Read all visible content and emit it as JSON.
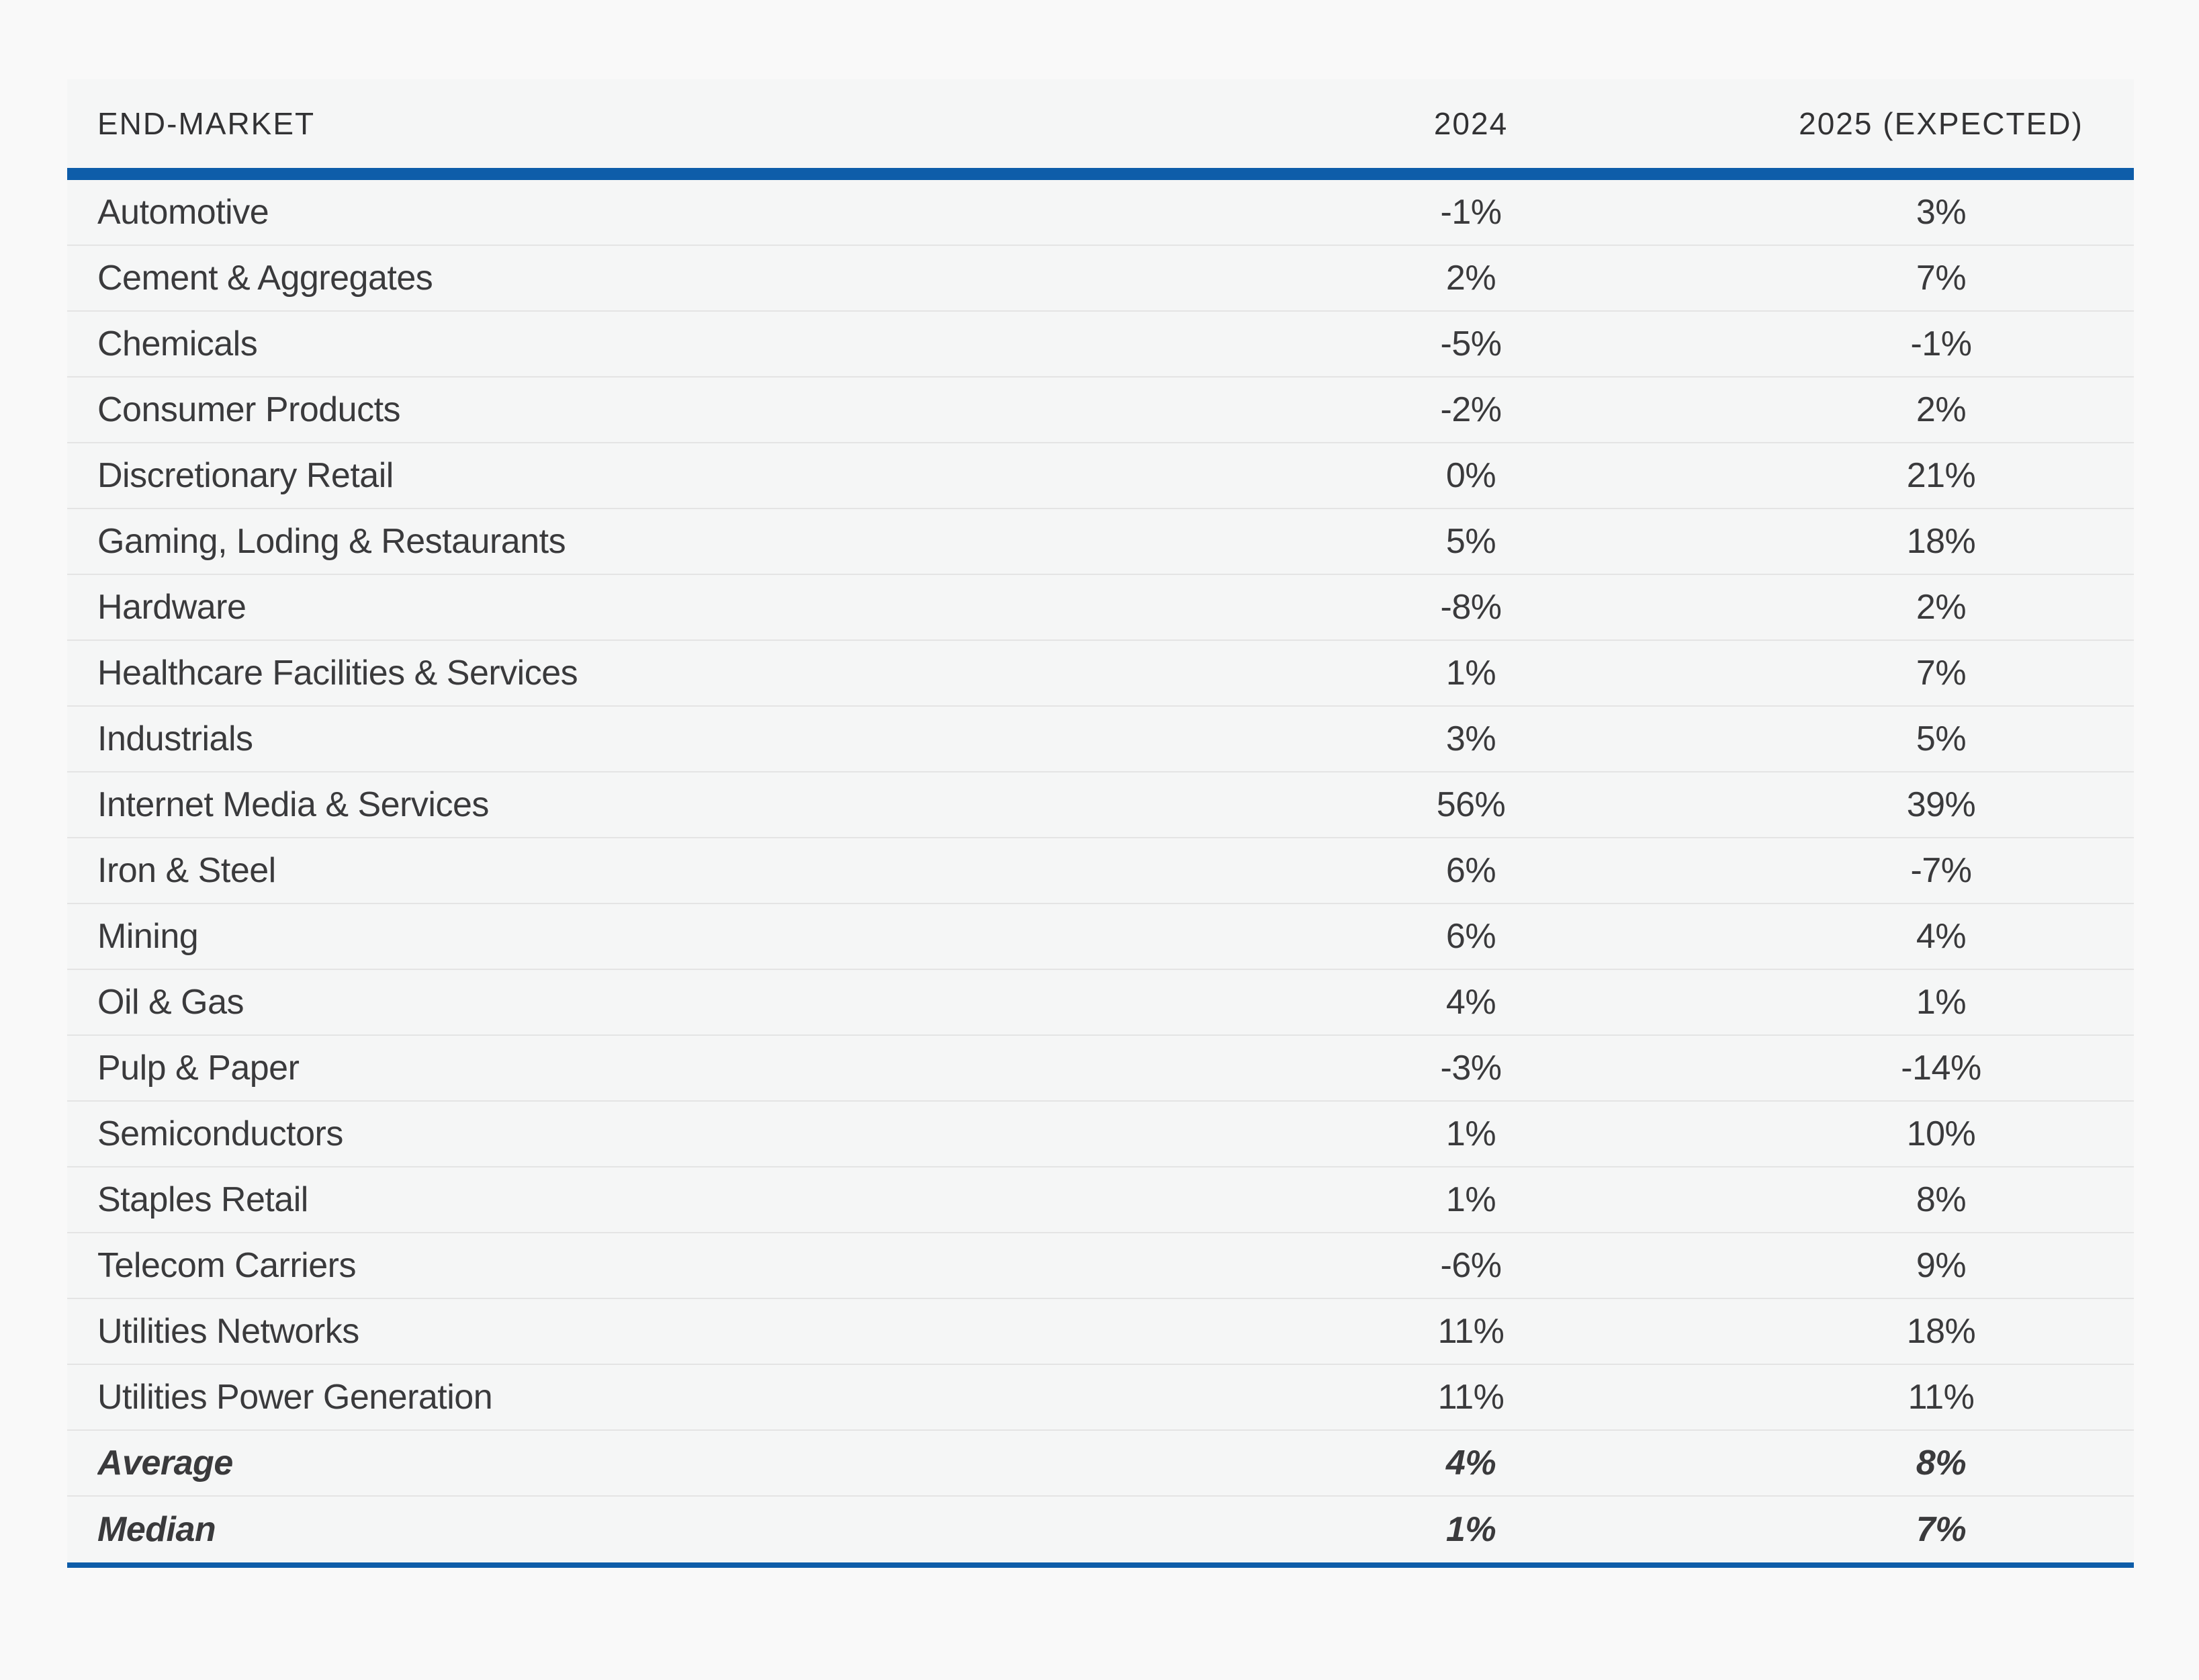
{
  "accent_color": "#0e5da9",
  "table": {
    "columns": [
      "END-MARKET",
      "2024",
      "2025 (EXPECTED)"
    ],
    "rows": [
      {
        "label": "Automotive",
        "v2024": "-1%",
        "v2025": "3%",
        "emphasis": false
      },
      {
        "label": "Cement & Aggregates",
        "v2024": "2%",
        "v2025": "7%",
        "emphasis": false
      },
      {
        "label": "Chemicals",
        "v2024": "-5%",
        "v2025": "-1%",
        "emphasis": false
      },
      {
        "label": "Consumer Products",
        "v2024": "-2%",
        "v2025": "2%",
        "emphasis": false
      },
      {
        "label": "Discretionary Retail",
        "v2024": "0%",
        "v2025": "21%",
        "emphasis": false
      },
      {
        "label": "Gaming, Loding & Restaurants",
        "v2024": "5%",
        "v2025": "18%",
        "emphasis": false
      },
      {
        "label": "Hardware",
        "v2024": "-8%",
        "v2025": "2%",
        "emphasis": false
      },
      {
        "label": "Healthcare Facilities & Services",
        "v2024": "1%",
        "v2025": "7%",
        "emphasis": false
      },
      {
        "label": "Industrials",
        "v2024": "3%",
        "v2025": "5%",
        "emphasis": false
      },
      {
        "label": "Internet Media & Services",
        "v2024": "56%",
        "v2025": "39%",
        "emphasis": false
      },
      {
        "label": "Iron & Steel",
        "v2024": "6%",
        "v2025": "-7%",
        "emphasis": false
      },
      {
        "label": "Mining",
        "v2024": "6%",
        "v2025": "4%",
        "emphasis": false
      },
      {
        "label": "Oil & Gas",
        "v2024": "4%",
        "v2025": "1%",
        "emphasis": false
      },
      {
        "label": "Pulp & Paper",
        "v2024": "-3%",
        "v2025": "-14%",
        "emphasis": false
      },
      {
        "label": "Semiconductors",
        "v2024": "1%",
        "v2025": "10%",
        "emphasis": false
      },
      {
        "label": "Staples Retail",
        "v2024": "1%",
        "v2025": "8%",
        "emphasis": false
      },
      {
        "label": "Telecom Carriers",
        "v2024": "-6%",
        "v2025": "9%",
        "emphasis": false
      },
      {
        "label": "Utilities Networks",
        "v2024": "11%",
        "v2025": "18%",
        "emphasis": false
      },
      {
        "label": "Utilities Power Generation",
        "v2024": "11%",
        "v2025": "11%",
        "emphasis": false
      },
      {
        "label": "Average",
        "v2024": "4%",
        "v2025": "8%",
        "emphasis": true
      },
      {
        "label": "Median",
        "v2024": "1%",
        "v2025": "7%",
        "emphasis": true
      }
    ]
  },
  "chart_data": {
    "type": "table",
    "title": "",
    "categories": [
      "Automotive",
      "Cement & Aggregates",
      "Chemicals",
      "Consumer Products",
      "Discretionary Retail",
      "Gaming, Loding & Restaurants",
      "Hardware",
      "Healthcare Facilities & Services",
      "Industrials",
      "Internet Media & Services",
      "Iron & Steel",
      "Mining",
      "Oil & Gas",
      "Pulp & Paper",
      "Semiconductors",
      "Staples Retail",
      "Telecom Carriers",
      "Utilities Networks",
      "Utilities Power Generation",
      "Average",
      "Median"
    ],
    "series": [
      {
        "name": "2024",
        "values": [
          -1,
          2,
          -5,
          -2,
          0,
          5,
          -8,
          1,
          3,
          56,
          6,
          6,
          4,
          -3,
          1,
          1,
          -6,
          11,
          11,
          4,
          1
        ],
        "unit": "%"
      },
      {
        "name": "2025 (EXPECTED)",
        "values": [
          3,
          7,
          -1,
          2,
          21,
          18,
          2,
          7,
          5,
          39,
          -7,
          4,
          1,
          -14,
          10,
          8,
          9,
          18,
          11,
          8,
          7
        ],
        "unit": "%"
      }
    ],
    "layout": {
      "grid": "horizontal-row-dividers",
      "summary_rows": [
        "Average",
        "Median"
      ],
      "accent_rule_color": "#0e5da9"
    }
  }
}
